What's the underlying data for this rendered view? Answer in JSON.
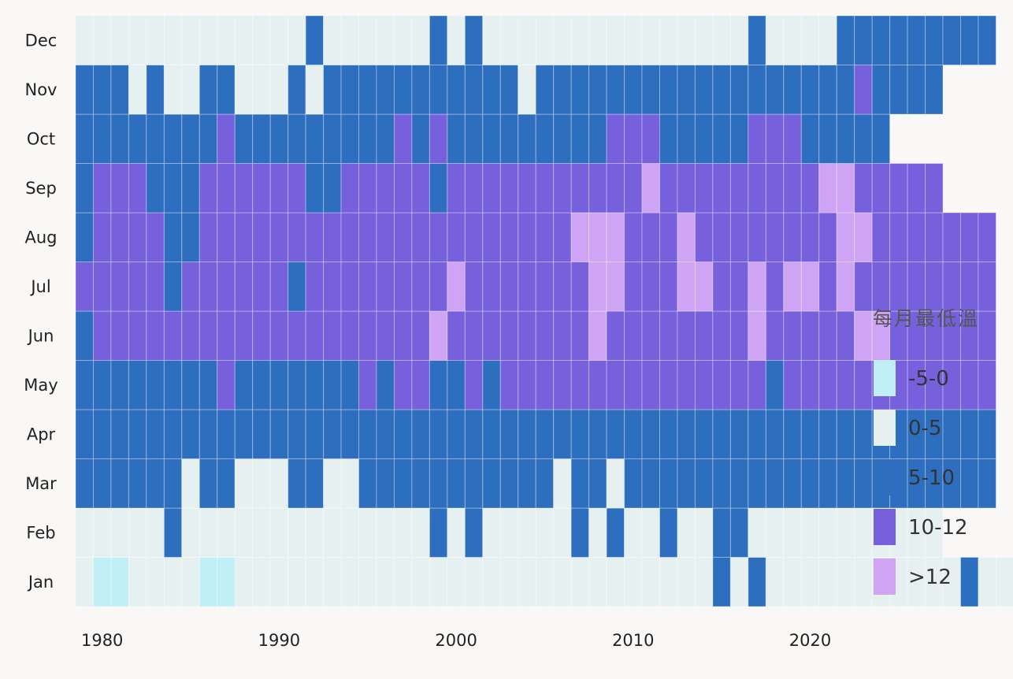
{
  "chart_data": {
    "type": "heatmap",
    "title": "",
    "xlabel": "",
    "ylabel": "",
    "x_ticks": [
      "1980",
      "1990",
      "2000",
      "2010",
      "2020"
    ],
    "months": [
      "Jan",
      "Feb",
      "Mar",
      "Apr",
      "May",
      "Jun",
      "Jul",
      "Aug",
      "Sep",
      "Oct",
      "Nov",
      "Dec"
    ],
    "year_start": 1979,
    "legend": {
      "title": "每月最低溫",
      "categories": [
        {
          "label": "-5-0",
          "color": "#c0f0f5"
        },
        {
          "label": "0-5",
          "color": "#e6f0f1"
        },
        {
          "label": "5-10",
          "color": "#2e6ebf"
        },
        {
          "label": "10-12",
          "color": "#7660db"
        },
        {
          "label": ">12",
          "color": "#cfa4f4"
        }
      ]
    },
    "category_codes": "0 = -5-0, 1 = 0-5, 2 = 5-10, 3 = 10-12, 4 = >12, empty = no data",
    "rows": {
      "Jan": "1001111001111111111111111111111111112121111111111121111",
      "Feb": "1111121111111111111121211111212112112211111111111",
      "Mar": "2222221221112211222222222221221222222222222222222222",
      "Apr": "2222222222222222222222222222222222222222222222222222",
      "May": "2222222232222222323322323333333333333332333333333333",
      "Jun": "2333333333333333333343333333343333333343333344333333",
      "Jul": "3333323333332333333334333333344333443343443433333333",
      "Aug": "2333322333333333333333333333444333433333333443333333",
      "Sep": "2333222333333223333323333333333343333333334433333",
      "Oct": "2222222232222222223232222222223332222233322222",
      "Nov": "2221211221112122222222222122222222222222222232222",
      "Dec": "1111111111111211111121211111111111111121111222222222"
    },
    "grid": false
  }
}
